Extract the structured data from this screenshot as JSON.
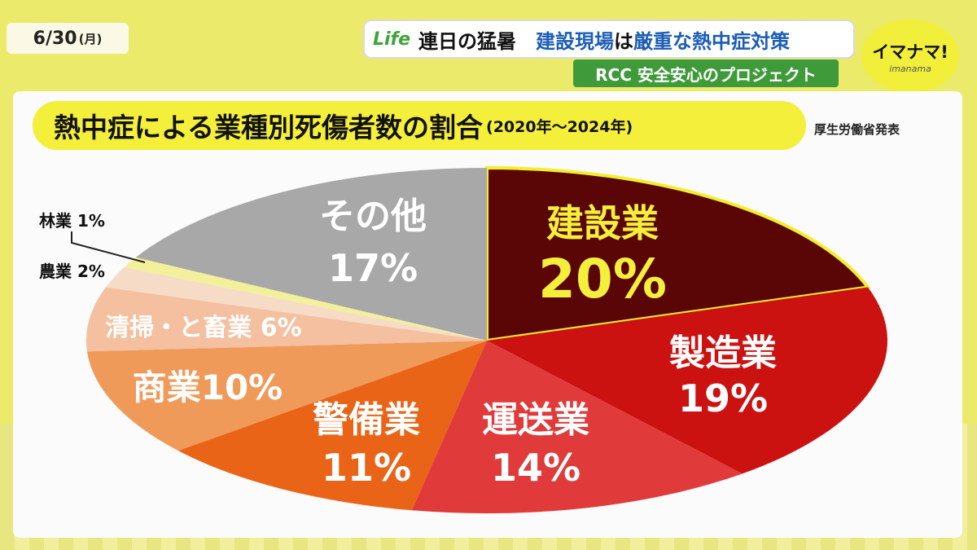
{
  "header": {
    "date": "6/30",
    "weekday": "(月)",
    "logo": "Life",
    "headline_1": "連日の猛暑",
    "headline_2": "建設現場",
    "headline_3": "は",
    "headline_4": "厳重な熱中症対策",
    "subheadline": "RCC 安全安心のプロジェクト",
    "brand": "イマナマ!",
    "brand_sub": "imanama"
  },
  "chart_data": {
    "type": "pie",
    "title": "熱中症による業種別死傷者数の割合",
    "subtitle": "(2020年〜2024年)",
    "source": "厚生労働省発表",
    "categories": [
      "建設業",
      "製造業",
      "運送業",
      "警備業",
      "商業",
      "清掃・と畜業",
      "農業",
      "林業",
      "その他"
    ],
    "values": [
      20,
      19,
      14,
      11,
      10,
      6,
      2,
      1,
      17
    ],
    "unit": "%",
    "colors": [
      "#5a0606",
      "#cc1111",
      "#e03a3a",
      "#ea6418",
      "#f09a5a",
      "#f4c0a0",
      "#f6dcc6",
      "#f2f09a",
      "#a8a8a8"
    ],
    "label_texts": {
      "建設業": {
        "name": "建設業",
        "pct": "20%"
      },
      "製造業": {
        "name": "製造業",
        "pct": "19%"
      },
      "運送業": {
        "name": "運送業",
        "pct": "14%"
      },
      "警備業": {
        "name": "警備業",
        "pct": "11%"
      },
      "商業": {
        "name": "商業10%",
        "pct": ""
      },
      "清掃・と畜業": {
        "name": "清掃・と畜業 6%",
        "pct": ""
      },
      "農業": {
        "name": "農業 2%",
        "pct": ""
      },
      "林業": {
        "name": "林業 1%",
        "pct": ""
      },
      "その他": {
        "name": "その他",
        "pct": "17%"
      }
    }
  }
}
